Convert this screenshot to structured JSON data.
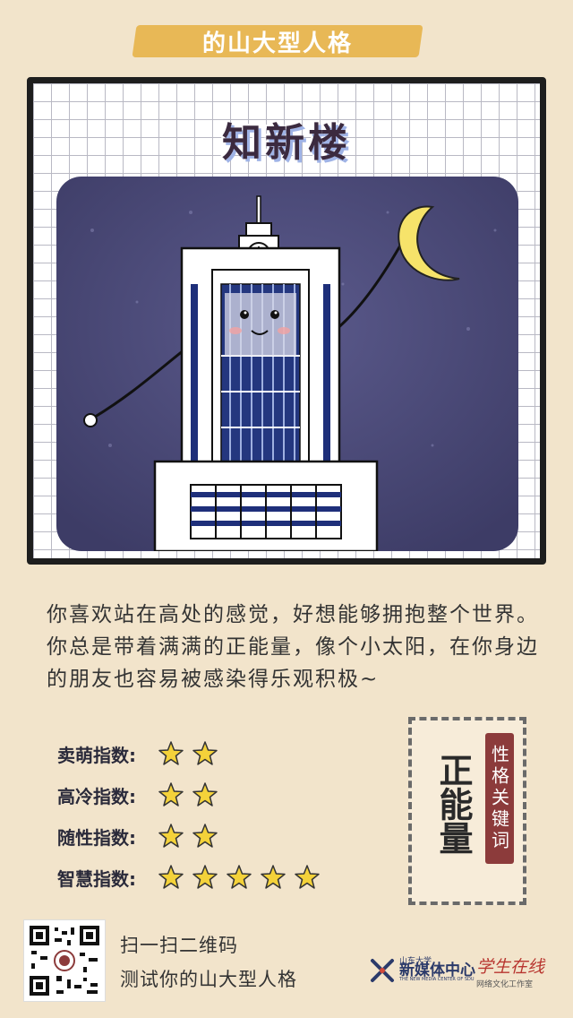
{
  "banner": {
    "text": "的山大型人格"
  },
  "card": {
    "title": "知新楼"
  },
  "description": "你喜欢站在高处的感觉，好想能够拥抱整个世界。你总是带着满满的正能量，像个小太阳，在你身边的朋友也容易被感染得乐观积极~",
  "ratings": [
    {
      "label": "卖萌指数:",
      "stars": 2
    },
    {
      "label": "高冷指数:",
      "stars": 2
    },
    {
      "label": "随性指数:",
      "stars": 2
    },
    {
      "label": "智慧指数:",
      "stars": 5
    }
  ],
  "keyword": {
    "tag": "性格关键词",
    "value": "正能量"
  },
  "footer": {
    "scan_line1": "扫一扫二维码",
    "scan_line2": "测试你的山大型人格",
    "logo1_small": "山东大学",
    "logo1_big": "新媒体中心",
    "logo1_en": "THE NEW MEDIA CENTER OF SDU",
    "logo2_big": "学生在线",
    "logo2_small": "网络文化工作室"
  },
  "colors": {
    "background": "#f2e4cb",
    "banner": "#e7b54f",
    "star": "#f4d23a",
    "night_sky": "#4b4a78",
    "tag": "#8c3b3b"
  }
}
